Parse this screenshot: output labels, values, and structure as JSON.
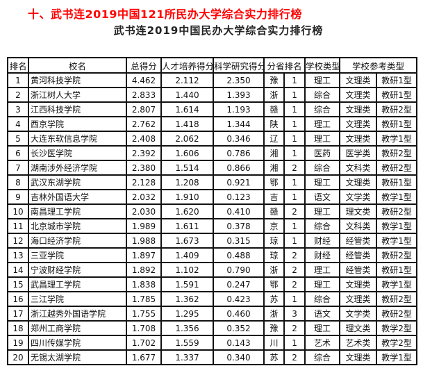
{
  "heading": "十、武书连2019中国121所民办大学综合实力排行榜",
  "table_title": "武书连2019中国民办大学综合实力排行榜",
  "columns": [
    "排名",
    "校名",
    "总得分",
    "人才培养得分",
    "科学研究得分",
    "分省排名",
    "学校类型",
    "学校参考类型"
  ],
  "rows": [
    [
      "1",
      "黄河科技学院",
      "4.462",
      "2.112",
      "2.350",
      "豫",
      "1",
      "理工",
      "文理类",
      "教研1型"
    ],
    [
      "2",
      "浙江树人大学",
      "2.833",
      "1.440",
      "1.393",
      "浙",
      "1",
      "综合",
      "文理类",
      "教研1型"
    ],
    [
      "3",
      "江西科技学院",
      "2.807",
      "1.614",
      "1.193",
      "赣",
      "1",
      "综合",
      "文理类",
      "教研2型"
    ],
    [
      "4",
      "西京学院",
      "2.762",
      "1.418",
      "1.344",
      "陕",
      "1",
      "理工",
      "文理类",
      "教研1型"
    ],
    [
      "5",
      "大连东软信息学院",
      "2.408",
      "2.062",
      "0.346",
      "辽",
      "1",
      "理工",
      "文理类",
      "教学1型"
    ],
    [
      "6",
      "长沙医学院",
      "2.392",
      "1.606",
      "0.786",
      "湘",
      "1",
      "医药",
      "医学类",
      "教研2型"
    ],
    [
      "7",
      "湖南涉外经济学院",
      "2.380",
      "1.514",
      "0.866",
      "湘",
      "2",
      "综合",
      "文科类",
      "教研2型"
    ],
    [
      "8",
      "武汉东湖学院",
      "2.128",
      "1.208",
      "0.921",
      "鄂",
      "1",
      "理工",
      "文理类",
      "教研1型"
    ],
    [
      "9",
      "吉林外国语大学",
      "2.032",
      "1.910",
      "0.123",
      "吉",
      "1",
      "语文",
      "文学类",
      "教学1型"
    ],
    [
      "10",
      "南昌理工学院",
      "2.030",
      "1.620",
      "0.410",
      "赣",
      "2",
      "理工",
      "理文类",
      "教研2型"
    ],
    [
      "11",
      "北京城市学院",
      "1.989",
      "1.611",
      "0.378",
      "京",
      "1",
      "综合",
      "文科类",
      "教学1型"
    ],
    [
      "12",
      "海口经济学院",
      "1.988",
      "1.673",
      "0.315",
      "琼",
      "1",
      "财经",
      "经管类",
      "教学1型"
    ],
    [
      "13",
      "三亚学院",
      "1.897",
      "1.409",
      "0.488",
      "琼",
      "2",
      "财经",
      "经管类",
      "教研2型"
    ],
    [
      "14",
      "宁波财经学院",
      "1.892",
      "1.102",
      "0.790",
      "浙",
      "2",
      "理工",
      "经管类",
      "教研1型"
    ],
    [
      "15",
      "武昌理工学院",
      "1.838",
      "1.591",
      "0.247",
      "鄂",
      "2",
      "理工",
      "文理类",
      "教学1型"
    ],
    [
      "16",
      "三江学院",
      "1.785",
      "1.362",
      "0.423",
      "苏",
      "1",
      "综合",
      "文理类",
      "教研2型"
    ],
    [
      "17",
      "浙江越秀外国语学院",
      "1.755",
      "1.295",
      "0.460",
      "浙",
      "3",
      "语文",
      "文学类",
      "教研2型"
    ],
    [
      "18",
      "郑州工商学院",
      "1.708",
      "1.356",
      "0.352",
      "豫",
      "2",
      "理工",
      "理文类",
      "教学2型"
    ],
    [
      "19",
      "四川传媒学院",
      "1.702",
      "1.559",
      "0.143",
      "川",
      "1",
      "艺术",
      "艺术类",
      "教学2型"
    ],
    [
      "20",
      "无锡太湖学院",
      "1.677",
      "1.337",
      "0.340",
      "苏",
      "2",
      "综合",
      "文理类",
      "教学1型"
    ]
  ],
  "colors": {
    "heading": "#ff0000",
    "text": "#111111"
  }
}
